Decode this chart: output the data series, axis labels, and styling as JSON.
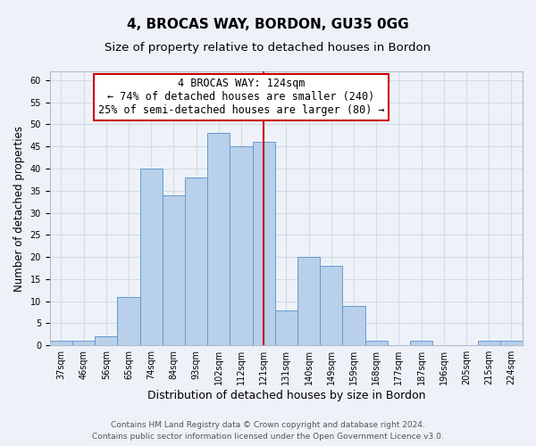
{
  "title": "4, BROCAS WAY, BORDON, GU35 0GG",
  "subtitle": "Size of property relative to detached houses in Bordon",
  "xlabel": "Distribution of detached houses by size in Bordon",
  "ylabel": "Number of detached properties",
  "bar_labels": [
    "37sqm",
    "46sqm",
    "56sqm",
    "65sqm",
    "74sqm",
    "84sqm",
    "93sqm",
    "102sqm",
    "112sqm",
    "121sqm",
    "131sqm",
    "140sqm",
    "149sqm",
    "159sqm",
    "168sqm",
    "177sqm",
    "187sqm",
    "196sqm",
    "205sqm",
    "215sqm",
    "224sqm"
  ],
  "bar_values": [
    1,
    1,
    2,
    11,
    40,
    34,
    38,
    48,
    45,
    46,
    8,
    20,
    18,
    9,
    1,
    0,
    1,
    0,
    0,
    1,
    1
  ],
  "bar_color": "#b8d0ea",
  "bar_edge_color": "#6699cc",
  "grid_color": "#d0dce8",
  "background_color": "#eef2f8",
  "vline_x_index": 9.5,
  "vline_color": "#cc0000",
  "annotation_title": "4 BROCAS WAY: 124sqm",
  "annotation_line1": "← 74% of detached houses are smaller (240)",
  "annotation_line2": "25% of semi-detached houses are larger (80) →",
  "annotation_box_edge": "#cc0000",
  "annotation_box_face": "#ffffff",
  "ylim": [
    0,
    62
  ],
  "yticks": [
    0,
    5,
    10,
    15,
    20,
    25,
    30,
    35,
    40,
    45,
    50,
    55,
    60
  ],
  "footer1": "Contains HM Land Registry data © Crown copyright and database right 2024.",
  "footer2": "Contains public sector information licensed under the Open Government Licence v3.0.",
  "title_fontsize": 11,
  "subtitle_fontsize": 9.5,
  "xlabel_fontsize": 9,
  "ylabel_fontsize": 8.5,
  "tick_fontsize": 7,
  "annotation_fontsize": 8.5,
  "footer_fontsize": 6.5
}
